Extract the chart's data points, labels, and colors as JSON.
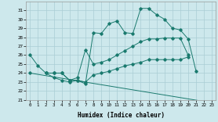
{
  "background_color": "#cde8ec",
  "grid_color": "#aacdd4",
  "line_color": "#1a7a6e",
  "xlabel": "Humidex (Indice chaleur)",
  "ylim": [
    21,
    32
  ],
  "xlim": [
    -0.5,
    23.5
  ],
  "yticks": [
    21,
    22,
    23,
    24,
    25,
    26,
    27,
    28,
    29,
    30,
    31
  ],
  "xticks": [
    0,
    1,
    2,
    3,
    4,
    5,
    6,
    7,
    8,
    9,
    10,
    11,
    12,
    13,
    14,
    15,
    16,
    17,
    18,
    19,
    20,
    21,
    22,
    23
  ],
  "series": [
    {
      "x": [
        0,
        1,
        2,
        3,
        4,
        5,
        6,
        7,
        8,
        9,
        10,
        11,
        12,
        13,
        14,
        15,
        16,
        17,
        18,
        19,
        20,
        21
      ],
      "y": [
        26.0,
        24.8,
        24.0,
        24.0,
        24.0,
        23.2,
        23.2,
        22.8,
        28.5,
        28.4,
        29.5,
        29.8,
        28.5,
        28.4,
        31.2,
        31.2,
        30.5,
        30.0,
        29.0,
        28.8,
        27.8,
        24.2
      ]
    },
    {
      "x": [
        2,
        3,
        4,
        5,
        6,
        7,
        8,
        9,
        10,
        11,
        12,
        13,
        14,
        15,
        16,
        17,
        18,
        19,
        20
      ],
      "y": [
        24.0,
        24.0,
        24.0,
        23.2,
        23.5,
        26.6,
        25.0,
        25.2,
        25.5,
        26.0,
        26.5,
        27.0,
        27.5,
        27.8,
        27.8,
        27.9,
        27.9,
        27.9,
        26.0
      ]
    },
    {
      "x": [
        2,
        3,
        4,
        5,
        6,
        7,
        8,
        9,
        10,
        11,
        12,
        13,
        14,
        15,
        16,
        17,
        18,
        19,
        20
      ],
      "y": [
        24.0,
        23.5,
        23.2,
        23.0,
        23.2,
        23.0,
        23.8,
        24.0,
        24.2,
        24.5,
        24.8,
        25.0,
        25.2,
        25.5,
        25.5,
        25.5,
        25.5,
        25.5,
        25.8
      ]
    },
    {
      "x": [
        0,
        23
      ],
      "y": [
        24.0,
        20.7
      ]
    }
  ]
}
